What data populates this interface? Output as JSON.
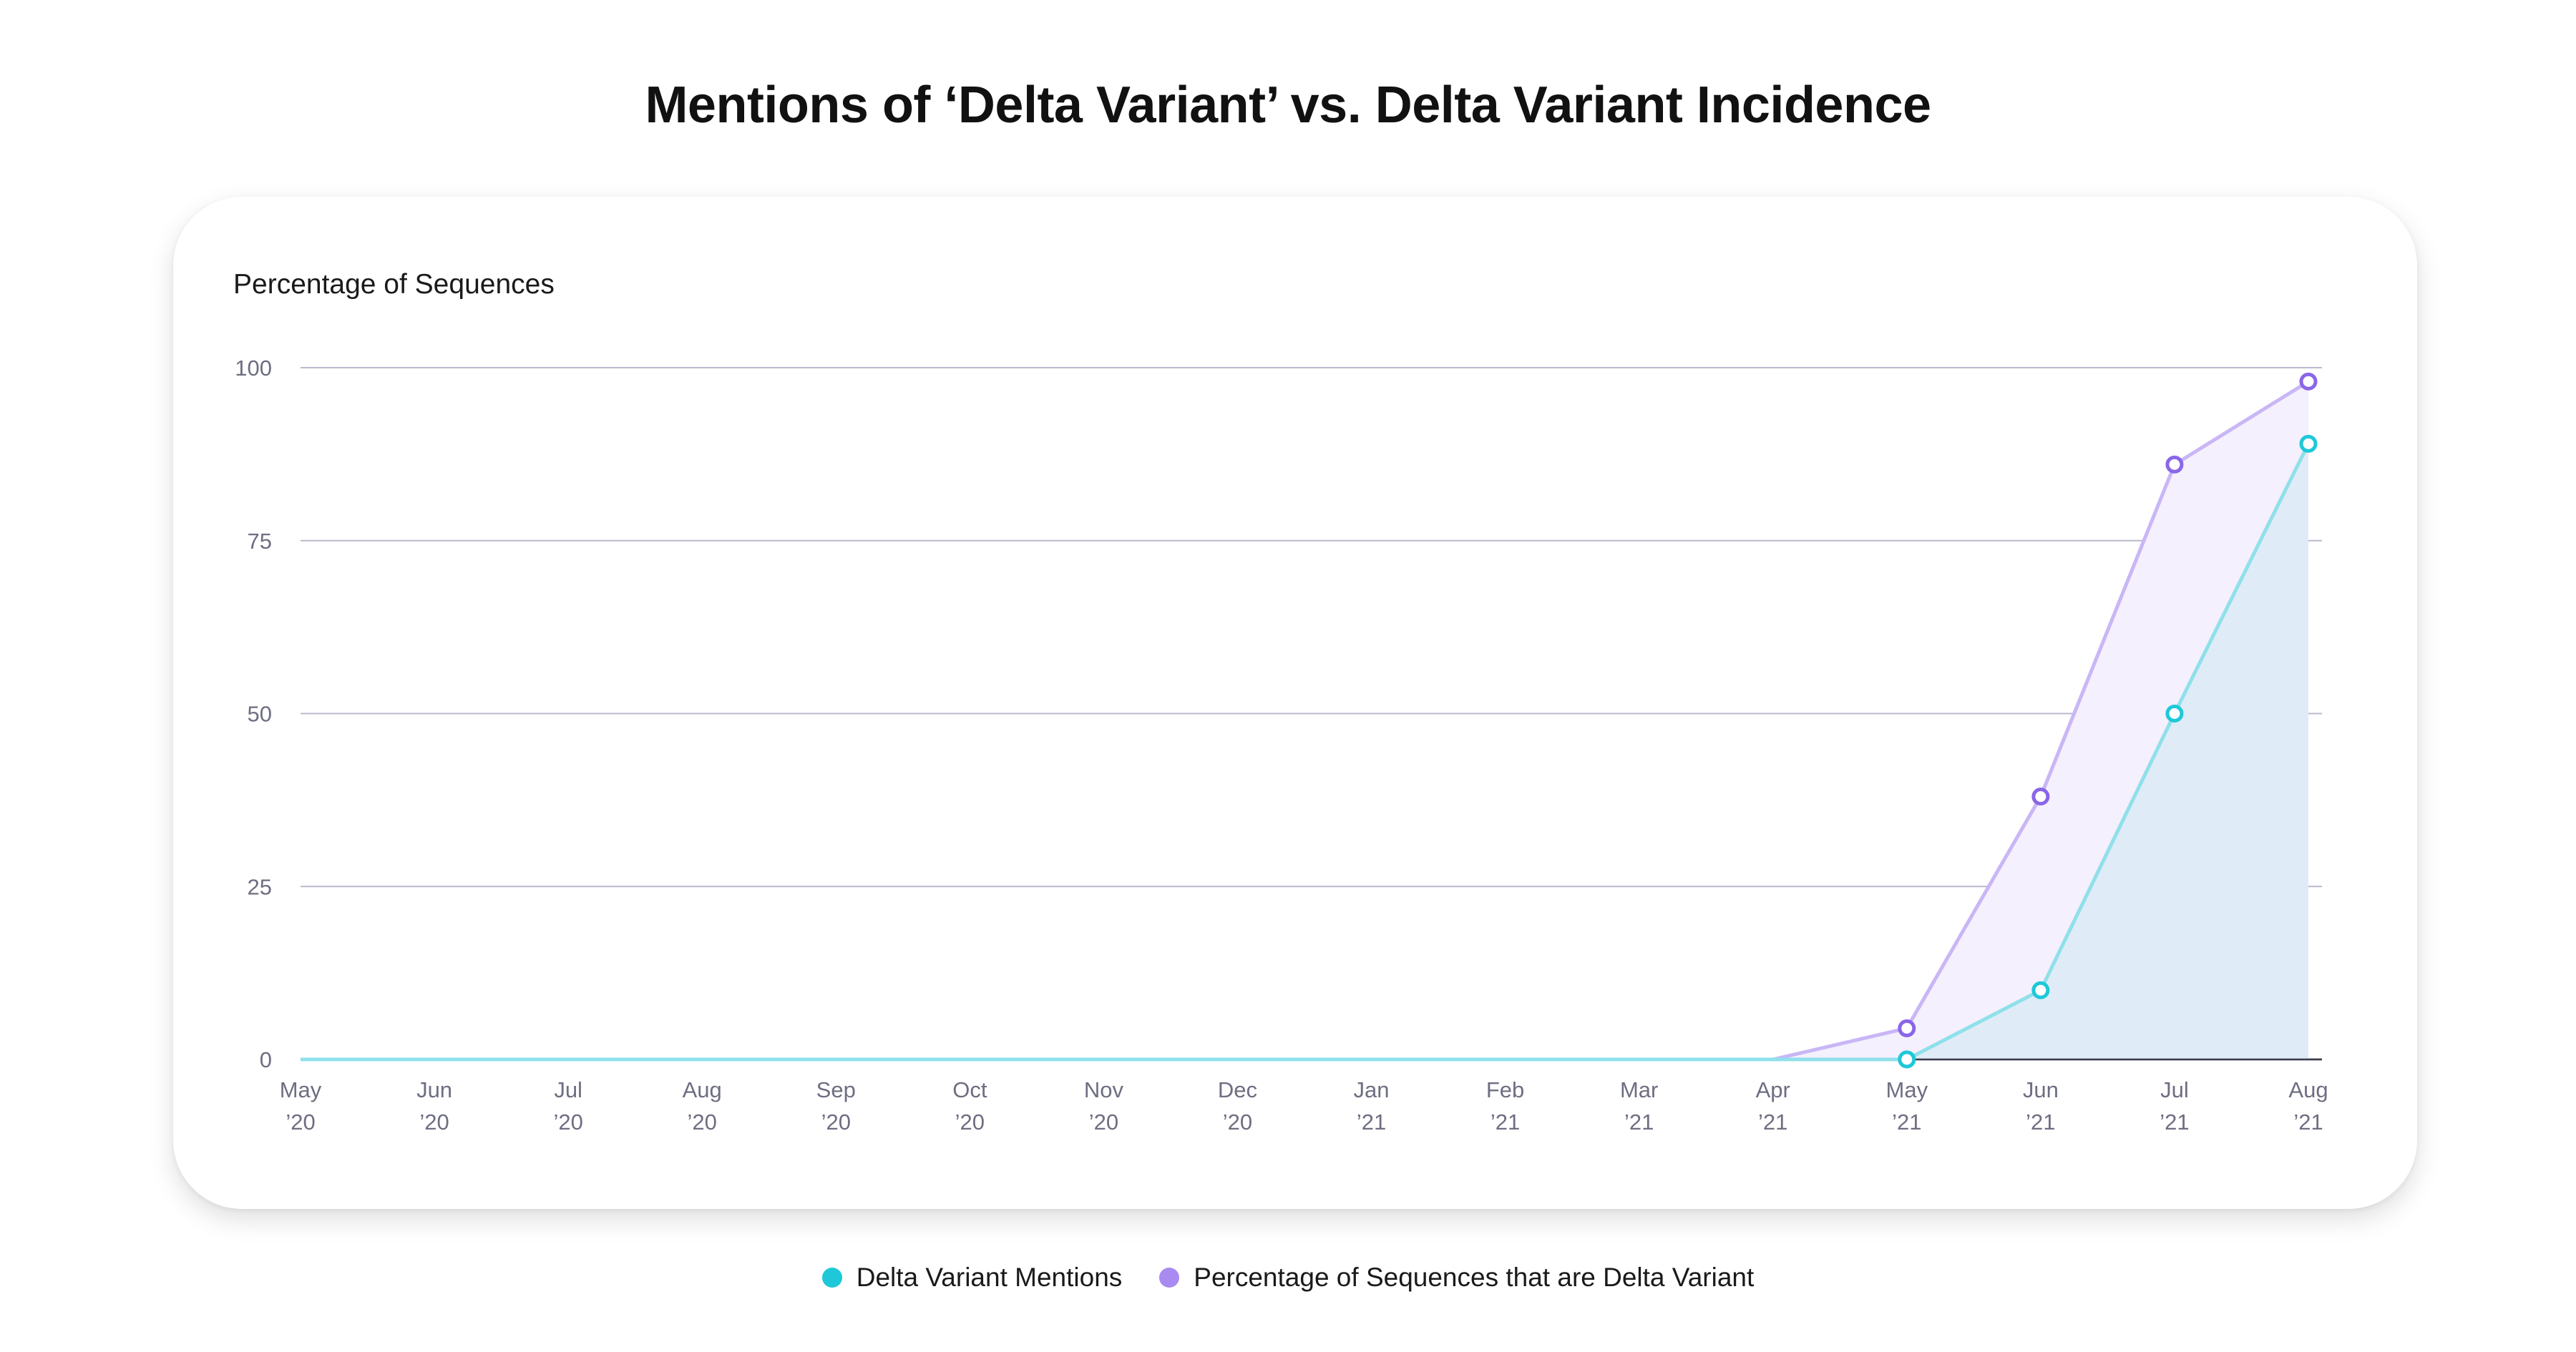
{
  "chart_data": {
    "type": "area",
    "title": "Mentions of ‘Delta Variant’ vs. Delta Variant Incidence",
    "ylabel": "Percentage of Sequences",
    "xlabel": "",
    "ylim": [
      0,
      100
    ],
    "yticks": [
      "100",
      "75",
      "50",
      "25",
      "0"
    ],
    "categories": [
      [
        "May",
        "’20"
      ],
      [
        "Jun",
        "’20"
      ],
      [
        "Jul",
        "’20"
      ],
      [
        "Aug",
        "’20"
      ],
      [
        "Sep",
        "’20"
      ],
      [
        "Oct",
        "’20"
      ],
      [
        "Nov",
        "’20"
      ],
      [
        "Dec",
        "’20"
      ],
      [
        "Jan",
        "’21"
      ],
      [
        "Feb",
        "’21"
      ],
      [
        "Mar",
        "’21"
      ],
      [
        "Apr",
        "’21"
      ],
      [
        "May",
        "’21"
      ],
      [
        "Jun",
        "’21"
      ],
      [
        "Jul",
        "’21"
      ],
      [
        "Aug",
        "’21"
      ]
    ],
    "grid": true,
    "legend_position": "bottom-center",
    "series": [
      {
        "name": "Delta Variant Mentions",
        "color": "#1ec8d8",
        "fill": "#dfecf7",
        "values": [
          0,
          0,
          0,
          0,
          0,
          0,
          0,
          0,
          0,
          0,
          0,
          0,
          0,
          10,
          50,
          89
        ],
        "markers_from_index": 12
      },
      {
        "name": "Percentage of Sequences that are Delta Variant",
        "color": "#8a66e8",
        "fill": "#f5f0fd",
        "line_color": "#c9b6f6",
        "values": [
          0,
          0,
          0,
          0,
          0,
          0,
          0,
          0,
          0,
          0,
          0,
          0,
          4.5,
          38,
          86,
          98
        ],
        "markers_from_index": 12
      }
    ]
  }
}
